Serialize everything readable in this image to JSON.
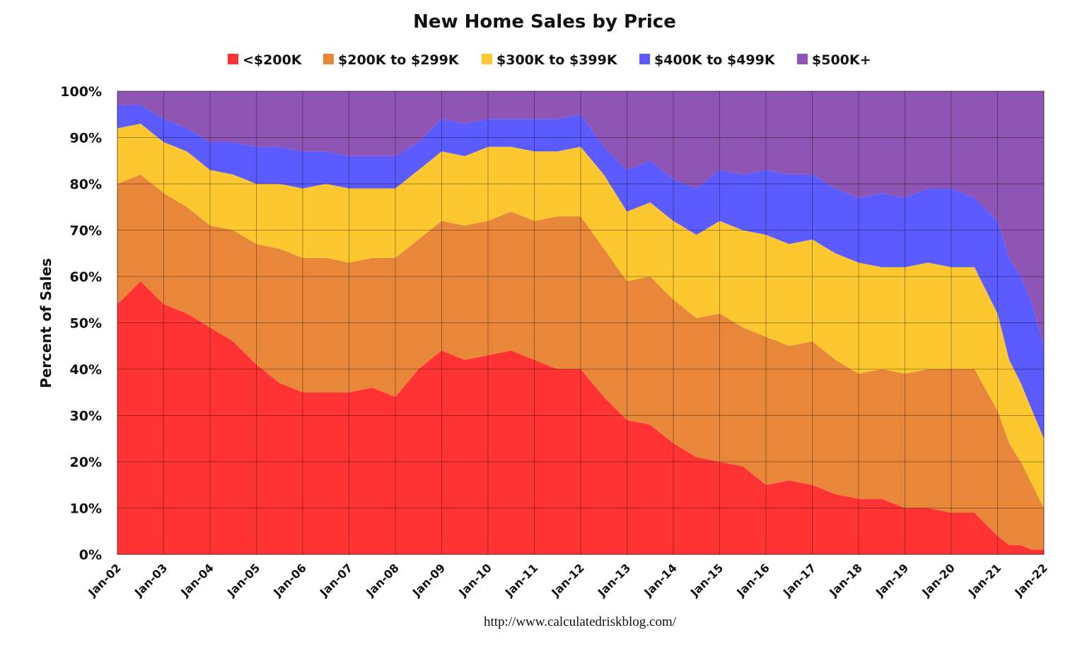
{
  "chart_data": {
    "type": "area",
    "stacked": true,
    "percent": true,
    "title": "New Home Sales by Price",
    "xlabel": "",
    "ylabel": "Percent of Sales",
    "ylim": [
      0,
      100
    ],
    "yticks": [
      "0%",
      "10%",
      "20%",
      "30%",
      "40%",
      "50%",
      "60%",
      "70%",
      "80%",
      "90%",
      "100%"
    ],
    "xticks": [
      "Jan-02",
      "Jan-03",
      "Jan-04",
      "Jan-05",
      "Jan-06",
      "Jan-07",
      "Jan-08",
      "Jan-09",
      "Jan-10",
      "Jan-11",
      "Jan-12",
      "Jan-13",
      "Jan-14",
      "Jan-15",
      "Jan-16",
      "Jan-17",
      "Jan-18",
      "Jan-19",
      "Jan-20",
      "Jan-21",
      "Jan-22"
    ],
    "x": [
      2002.0,
      2002.5,
      2003.0,
      2003.5,
      2004.0,
      2004.5,
      2005.0,
      2005.5,
      2006.0,
      2006.5,
      2007.0,
      2007.5,
      2008.0,
      2008.5,
      2009.0,
      2009.5,
      2010.0,
      2010.5,
      2011.0,
      2011.5,
      2012.0,
      2012.5,
      2013.0,
      2013.5,
      2014.0,
      2014.5,
      2015.0,
      2015.5,
      2016.0,
      2016.5,
      2017.0,
      2017.5,
      2018.0,
      2018.5,
      2019.0,
      2019.5,
      2020.0,
      2020.5,
      2021.0,
      2021.25,
      2021.5,
      2021.75,
      2022.0
    ],
    "grid": true,
    "legend_position": "top",
    "series": [
      {
        "name": "<$200K",
        "color": "#ff3333",
        "values": [
          54,
          59,
          54,
          52,
          49,
          46,
          41,
          37,
          35,
          35,
          35,
          36,
          34,
          40,
          44,
          42,
          43,
          44,
          42,
          40,
          40,
          34,
          29,
          28,
          24,
          21,
          20,
          19,
          15,
          16,
          15,
          13,
          12,
          12,
          10,
          10,
          9,
          9,
          4,
          2,
          2,
          1,
          1
        ]
      },
      {
        "name": "$200K to $299K",
        "color": "#e8873a",
        "values": [
          26,
          23,
          24,
          23,
          22,
          24,
          26,
          29,
          29,
          29,
          28,
          28,
          30,
          28,
          28,
          29,
          29,
          30,
          30,
          33,
          33,
          32,
          30,
          32,
          31,
          30,
          32,
          30,
          32,
          29,
          31,
          29,
          27,
          28,
          29,
          30,
          31,
          31,
          27,
          22,
          18,
          14,
          9
        ]
      },
      {
        "name": "$300K to $399K",
        "color": "#fdc82f",
        "values": [
          12,
          11,
          11,
          12,
          12,
          12,
          13,
          14,
          15,
          16,
          16,
          15,
          15,
          15,
          15,
          15,
          16,
          14,
          15,
          14,
          15,
          16,
          15,
          16,
          17,
          18,
          20,
          21,
          22,
          22,
          22,
          23,
          24,
          22,
          23,
          23,
          22,
          22,
          21,
          18,
          17,
          16,
          15
        ]
      },
      {
        "name": "$400K to $499K",
        "color": "#5b5bff",
        "values": [
          5,
          4,
          5,
          5,
          6,
          7,
          8,
          8,
          8,
          7,
          7,
          7,
          7,
          6,
          7,
          7,
          6,
          6,
          7,
          7,
          7,
          6,
          9,
          9,
          9,
          10,
          11,
          12,
          14,
          15,
          14,
          14,
          14,
          16,
          15,
          16,
          17,
          15,
          20,
          22,
          23,
          23,
          20
        ]
      },
      {
        "name": "$500K+",
        "color": "#8e55b4",
        "values": [
          3,
          3,
          6,
          8,
          11,
          11,
          12,
          12,
          13,
          13,
          14,
          14,
          14,
          11,
          6,
          7,
          6,
          6,
          6,
          6,
          5,
          12,
          17,
          15,
          19,
          21,
          17,
          18,
          17,
          18,
          18,
          21,
          23,
          22,
          23,
          21,
          21,
          23,
          28,
          36,
          40,
          46,
          55
        ]
      }
    ]
  },
  "source_text": "http://www.calculatedriskblog.com/"
}
